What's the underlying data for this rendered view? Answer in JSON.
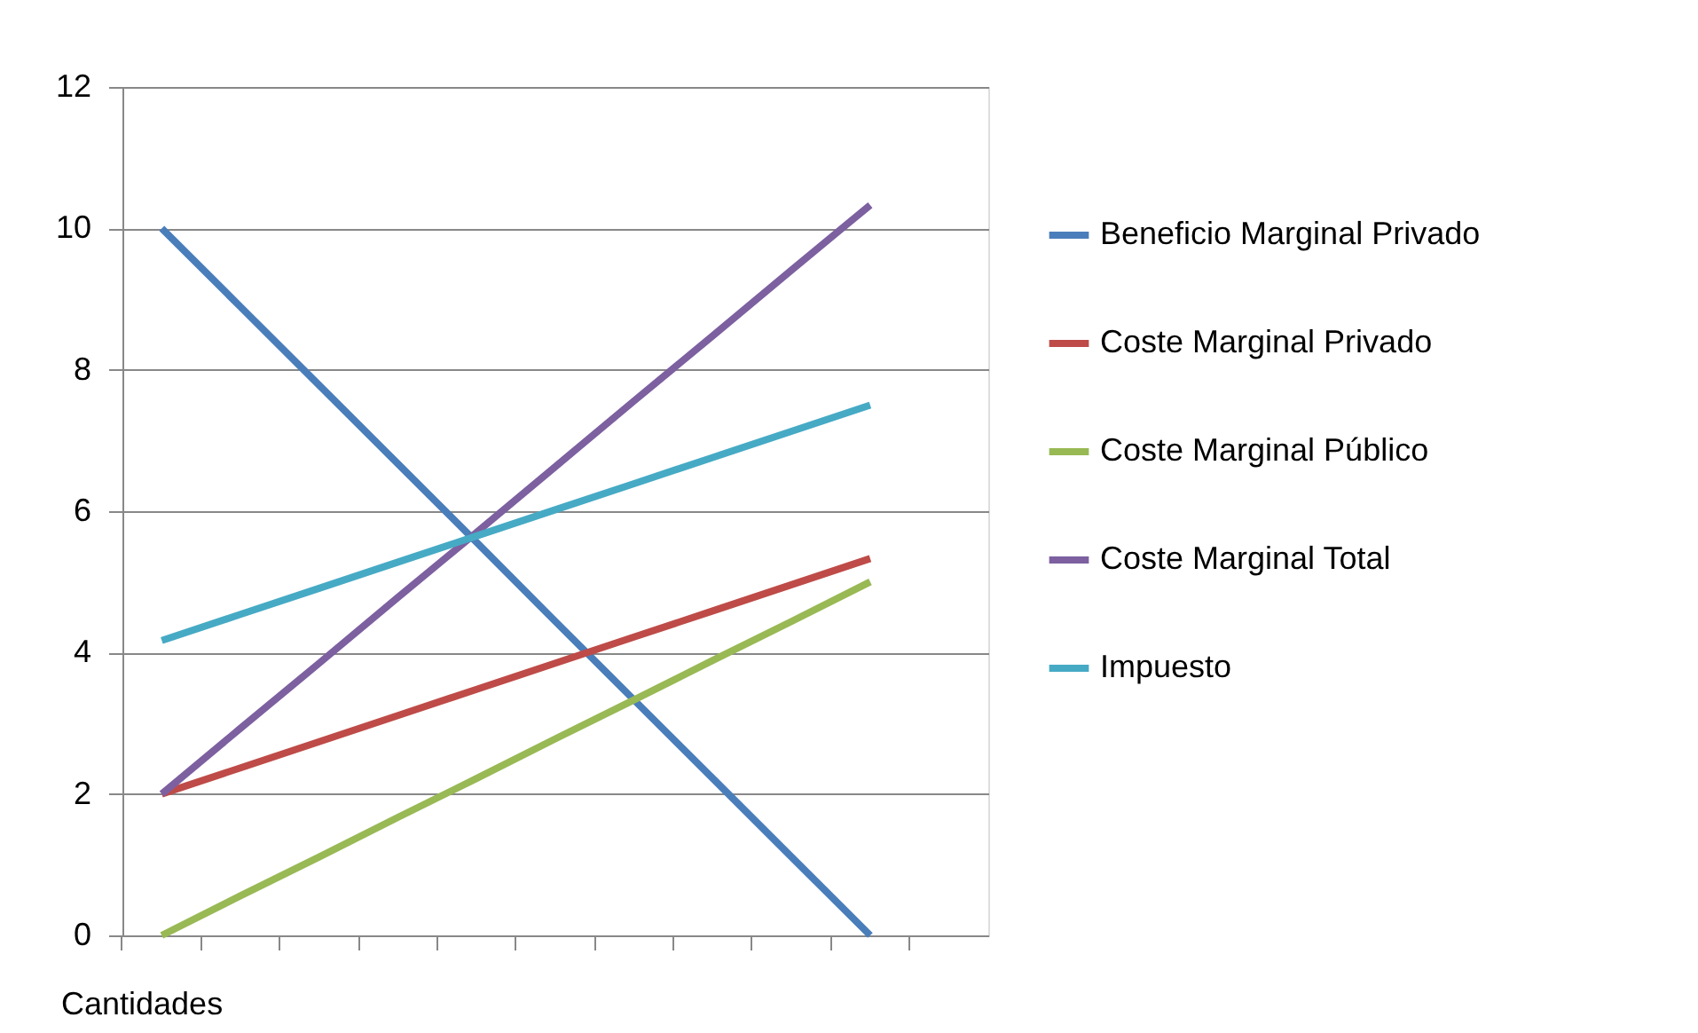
{
  "chart_data": {
    "type": "line",
    "xlabel": "Cantidades",
    "categories": [
      null,
      null,
      null,
      null,
      null,
      null,
      null,
      null,
      null,
      null,
      null
    ],
    "series": [
      {
        "name": "Beneficio Marginal Privado",
        "color": "#4a7ebb",
        "values": [
          10,
          8.89,
          7.78,
          6.67,
          5.56,
          4.44,
          3.33,
          2.22,
          1.11,
          0,
          null
        ]
      },
      {
        "name": "Coste Marginal Privado",
        "color": "#be4b48",
        "values": [
          2,
          2.37,
          2.74,
          3.11,
          3.48,
          3.85,
          4.22,
          4.59,
          4.96,
          5.33,
          null
        ]
      },
      {
        "name": "Coste Marginal Público",
        "color": "#98b954",
        "values": [
          0,
          0.56,
          1.11,
          1.67,
          2.22,
          2.78,
          3.33,
          3.89,
          4.44,
          5,
          null
        ]
      },
      {
        "name": "Coste Marginal Total",
        "color": "#7d60a0",
        "values": [
          2,
          2.93,
          3.85,
          4.78,
          5.7,
          6.63,
          7.56,
          8.48,
          9.41,
          10.33,
          null
        ]
      },
      {
        "name": "Impuesto",
        "color": "#46aac5",
        "values": [
          4.17,
          4.54,
          4.91,
          5.28,
          5.65,
          6.02,
          6.39,
          6.76,
          7.13,
          7.5,
          null
        ]
      }
    ],
    "ylim": [
      0,
      12
    ],
    "yticks": [
      0,
      2,
      4,
      6,
      8,
      10,
      12
    ],
    "grid": "y",
    "legend": "right",
    "tick_labels": "y",
    "marker": "none",
    "line_style": "solid"
  }
}
